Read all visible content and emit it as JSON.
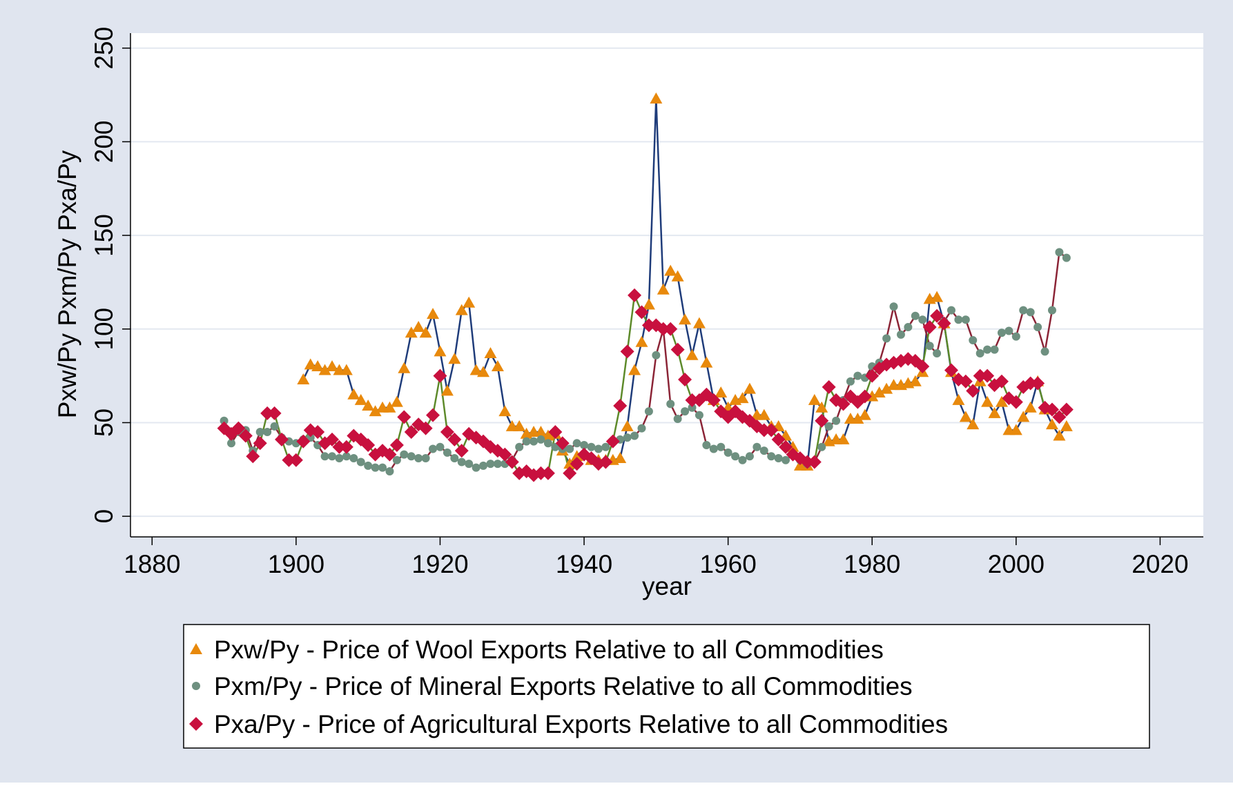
{
  "chart_data": {
    "type": "line",
    "x_label": "year",
    "y_label": "Pxw/Py  Pxm/Py  Pxa/Py",
    "x": [
      1890,
      1891,
      1892,
      1893,
      1894,
      1895,
      1896,
      1897,
      1898,
      1899,
      1900,
      1901,
      1902,
      1903,
      1904,
      1905,
      1906,
      1907,
      1908,
      1909,
      1910,
      1911,
      1912,
      1913,
      1914,
      1915,
      1916,
      1917,
      1918,
      1919,
      1920,
      1921,
      1922,
      1923,
      1924,
      1925,
      1926,
      1927,
      1928,
      1929,
      1930,
      1931,
      1932,
      1933,
      1934,
      1935,
      1936,
      1937,
      1938,
      1939,
      1940,
      1941,
      1942,
      1943,
      1944,
      1945,
      1946,
      1947,
      1948,
      1949,
      1950,
      1951,
      1952,
      1953,
      1954,
      1955,
      1956,
      1957,
      1958,
      1959,
      1960,
      1961,
      1962,
      1963,
      1964,
      1965,
      1966,
      1967,
      1968,
      1969,
      1970,
      1971,
      1972,
      1973,
      1974,
      1975,
      1976,
      1977,
      1978,
      1979,
      1980,
      1981,
      1982,
      1983,
      1984,
      1985,
      1986,
      1987,
      1988,
      1989,
      1990,
      1991,
      1992,
      1993,
      1994,
      1995,
      1996,
      1997,
      1998,
      1999,
      2000,
      2001,
      2002,
      2003,
      2004,
      2005,
      2006,
      2007
    ],
    "xlim": [
      1877,
      2026
    ],
    "xticks": [
      1880,
      1900,
      1920,
      1940,
      1960,
      1980,
      2000,
      2020
    ],
    "ylim": [
      -11,
      258
    ],
    "yticks": [
      0,
      50,
      100,
      150,
      200,
      250
    ],
    "grid": true,
    "series": [
      {
        "name": "Pxw/Py - Price of Wool Exports Relative to all Commodities",
        "color": "#e8890c",
        "line_color": "#1f3c7a",
        "marker": "triangle",
        "values": [
          null,
          null,
          null,
          null,
          null,
          null,
          null,
          null,
          null,
          null,
          null,
          73,
          81,
          80,
          78,
          80,
          78,
          78,
          65,
          62,
          59,
          56,
          58,
          58,
          61,
          79,
          98,
          101,
          98,
          108,
          88,
          67,
          84,
          110,
          114,
          78,
          77,
          87,
          80,
          56,
          48,
          48,
          44,
          45,
          45,
          43,
          44,
          35,
          28,
          32,
          34,
          30,
          30,
          30,
          30,
          31,
          48,
          78,
          93,
          113,
          223,
          121,
          131,
          128,
          105,
          86,
          103,
          82,
          62,
          66,
          58,
          62,
          63,
          68,
          54,
          54,
          48,
          48,
          43,
          37,
          27,
          27,
          62,
          58,
          40,
          41,
          41,
          52,
          52,
          54,
          64,
          66,
          68,
          70,
          70,
          71,
          72,
          77,
          116,
          117,
          103,
          77,
          62,
          53,
          49,
          72,
          61,
          55,
          61,
          46,
          46,
          53,
          58,
          72,
          57,
          49,
          43,
          48
        ]
      },
      {
        "name": "Pxm/Py - Price of Mineral Exports Relative to all Commodities",
        "color": "#6e9080",
        "line_color": "#8b2436",
        "marker": "circle",
        "values": [
          51,
          39,
          45,
          46,
          35,
          45,
          45,
          48,
          42,
          40,
          39,
          41,
          42,
          38,
          32,
          32,
          31,
          32,
          31,
          29,
          27,
          26,
          26,
          24,
          30,
          33,
          32,
          31,
          31,
          36,
          37,
          34,
          31,
          29,
          28,
          26,
          27,
          28,
          28,
          28,
          30,
          37,
          40,
          40,
          41,
          39,
          37,
          36,
          36,
          39,
          38,
          37,
          36,
          37,
          40,
          41,
          42,
          43,
          47,
          56,
          86,
          100,
          60,
          52,
          56,
          58,
          54,
          38,
          36,
          37,
          34,
          32,
          30,
          32,
          37,
          35,
          32,
          31,
          30,
          33,
          30,
          28,
          29,
          37,
          48,
          51,
          62,
          72,
          75,
          74,
          80,
          82,
          95,
          112,
          97,
          101,
          107,
          105,
          91,
          87,
          104,
          110,
          105,
          105,
          94,
          87,
          89,
          89,
          98,
          99,
          96,
          110,
          109,
          101,
          88,
          110,
          141,
          138
        ]
      },
      {
        "name": "Pxa/Py - Price of Agricultural Exports Relative to all Commodities",
        "color": "#c8103e",
        "line_color": "#5d8a2a",
        "marker": "diamond",
        "values": [
          47,
          44,
          47,
          43,
          32,
          39,
          55,
          55,
          41,
          30,
          30,
          40,
          46,
          45,
          39,
          41,
          37,
          37,
          43,
          41,
          38,
          33,
          35,
          33,
          38,
          53,
          45,
          49,
          47,
          54,
          75,
          45,
          41,
          35,
          44,
          42,
          40,
          37,
          35,
          33,
          29,
          23,
          24,
          22,
          23,
          23,
          45,
          39,
          23,
          28,
          33,
          31,
          28,
          29,
          40,
          59,
          88,
          118,
          109,
          102,
          102,
          100,
          100,
          89,
          73,
          62,
          62,
          65,
          62,
          56,
          53,
          56,
          53,
          51,
          48,
          46,
          46,
          41,
          37,
          33,
          31,
          29,
          29,
          51,
          69,
          62,
          60,
          64,
          61,
          64,
          75,
          79,
          81,
          82,
          83,
          84,
          83,
          80,
          101,
          107,
          103,
          78,
          73,
          72,
          67,
          75,
          75,
          70,
          72,
          63,
          61,
          69,
          71,
          71,
          58,
          57,
          53,
          57
        ]
      }
    ]
  }
}
